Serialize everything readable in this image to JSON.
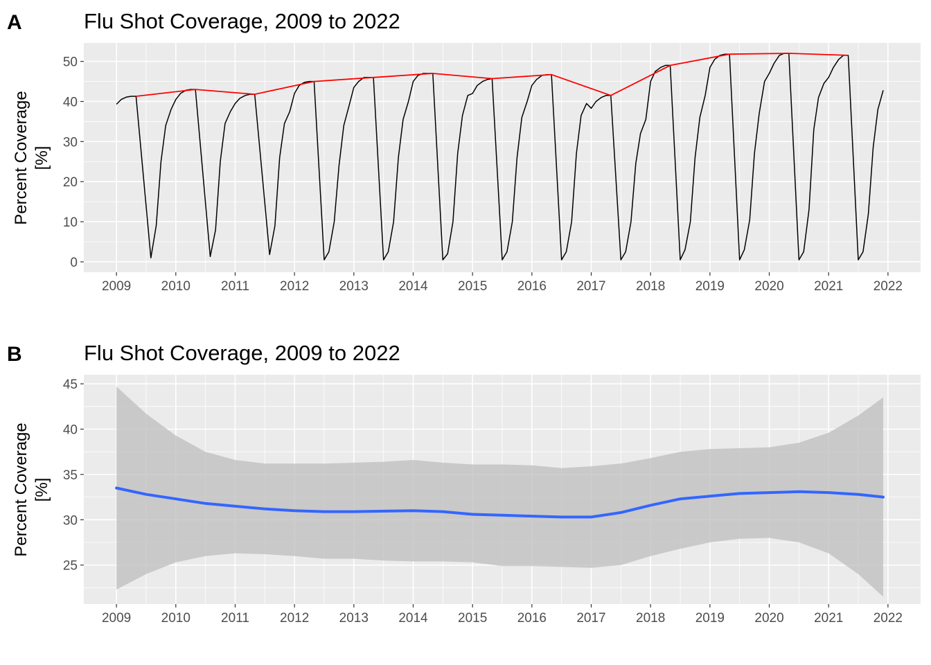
{
  "chart_data": [
    {
      "tag": "A",
      "type": "line",
      "title": "Flu Shot Coverage, 2009 to 2022",
      "ylabel_line1": "Percent Coverage",
      "ylabel_line2": "[%]",
      "xlim": [
        2008.45,
        2022.55
      ],
      "ylim": [
        -2.6,
        54.6
      ],
      "xticks": [
        2009,
        2010,
        2011,
        2012,
        2013,
        2014,
        2015,
        2016,
        2017,
        2018,
        2019,
        2020,
        2021,
        2022
      ],
      "yticks": [
        0,
        10,
        20,
        30,
        40,
        50
      ],
      "grid": true,
      "series": [
        {
          "color": "#000000",
          "x": [
            2009.0,
            2009.08,
            2009.17,
            2009.25,
            2009.33,
            2009.58,
            2009.67,
            2009.75,
            2009.83,
            2009.92,
            2010.0,
            2010.08,
            2010.17,
            2010.25,
            2010.33,
            2010.58,
            2010.67,
            2010.75,
            2010.83,
            2010.92,
            2011.0,
            2011.08,
            2011.17,
            2011.25,
            2011.33,
            2011.58,
            2011.67,
            2011.75,
            2011.83,
            2011.92,
            2012.0,
            2012.08,
            2012.17,
            2012.25,
            2012.33,
            2012.5,
            2012.58,
            2012.67,
            2012.75,
            2012.83,
            2012.92,
            2013.0,
            2013.08,
            2013.17,
            2013.25,
            2013.33,
            2013.5,
            2013.58,
            2013.67,
            2013.75,
            2013.83,
            2013.92,
            2014.0,
            2014.08,
            2014.17,
            2014.25,
            2014.33,
            2014.5,
            2014.58,
            2014.67,
            2014.75,
            2014.83,
            2014.92,
            2015.0,
            2015.08,
            2015.17,
            2015.25,
            2015.33,
            2015.5,
            2015.58,
            2015.67,
            2015.75,
            2015.83,
            2015.92,
            2016.0,
            2016.08,
            2016.17,
            2016.25,
            2016.33,
            2016.5,
            2016.58,
            2016.67,
            2016.75,
            2016.83,
            2016.92,
            2017.0,
            2017.08,
            2017.17,
            2017.25,
            2017.33,
            2017.5,
            2017.58,
            2017.67,
            2017.75,
            2017.83,
            2017.92,
            2018.0,
            2018.08,
            2018.17,
            2018.25,
            2018.33,
            2018.5,
            2018.58,
            2018.67,
            2018.75,
            2018.83,
            2018.92,
            2019.0,
            2019.08,
            2019.17,
            2019.25,
            2019.33,
            2019.5,
            2019.58,
            2019.67,
            2019.75,
            2019.83,
            2019.92,
            2020.0,
            2020.08,
            2020.17,
            2020.25,
            2020.33,
            2020.5,
            2020.58,
            2020.67,
            2020.75,
            2020.83,
            2020.92,
            2021.0,
            2021.08,
            2021.17,
            2021.25,
            2021.33,
            2021.5,
            2021.58,
            2021.67,
            2021.75,
            2021.83,
            2021.92
          ],
          "y": [
            39.3,
            40.5,
            41.1,
            41.3,
            41.3,
            1.0,
            9.0,
            25.0,
            34.0,
            38.0,
            40.5,
            42.0,
            42.8,
            43.0,
            43.0,
            1.3,
            8.0,
            25.0,
            34.5,
            37.5,
            39.5,
            40.8,
            41.5,
            41.8,
            41.8,
            1.8,
            9.0,
            26.0,
            34.5,
            37.5,
            42.0,
            44.0,
            44.8,
            45.0,
            45.0,
            0.5,
            2.5,
            10.0,
            24.0,
            34.0,
            39.0,
            43.5,
            45.0,
            46.0,
            46.0,
            46.0,
            0.5,
            2.5,
            10.0,
            26.0,
            35.5,
            40.0,
            45.0,
            46.5,
            47.0,
            47.0,
            47.0,
            0.5,
            2.0,
            10.0,
            27.0,
            36.5,
            41.5,
            42.0,
            44.0,
            45.0,
            45.5,
            45.7,
            0.5,
            2.5,
            10.0,
            26.0,
            36.0,
            40.0,
            44.0,
            45.5,
            46.5,
            46.7,
            46.7,
            0.5,
            2.5,
            10.0,
            27.0,
            36.5,
            39.5,
            38.3,
            40.0,
            41.0,
            41.5,
            41.5,
            0.5,
            2.5,
            10.0,
            24.5,
            32.0,
            35.5,
            45.0,
            47.5,
            48.5,
            49.0,
            49.0,
            0.5,
            3.0,
            10.0,
            26.0,
            36.0,
            41.5,
            48.5,
            50.5,
            51.5,
            51.8,
            51.8,
            0.5,
            3.0,
            10.5,
            27.0,
            37.0,
            45.0,
            47.0,
            49.5,
            51.5,
            52.0,
            52.0,
            0.5,
            2.5,
            13.0,
            33.0,
            41.0,
            44.5,
            46.0,
            48.5,
            50.5,
            51.5,
            51.5,
            0.5,
            2.5,
            12.0,
            28.5,
            38.0,
            42.8
          ]
        },
        {
          "color": "#ff0000",
          "x": [
            2009.33,
            2010.33,
            2011.33,
            2012.33,
            2013.33,
            2014.33,
            2015.33,
            2016.33,
            2017.33,
            2018.33,
            2019.33,
            2020.33,
            2021.33
          ],
          "y": [
            41.3,
            43.0,
            41.8,
            45.0,
            46.0,
            47.0,
            45.7,
            46.7,
            41.5,
            49.0,
            51.8,
            52.0,
            51.5
          ]
        }
      ]
    },
    {
      "tag": "B",
      "type": "area",
      "title": "Flu Shot Coverage, 2009 to 2022",
      "ylabel_line1": "Percent Coverage",
      "ylabel_line2": "[%]",
      "xlim": [
        2008.45,
        2022.55
      ],
      "ylim": [
        20.7,
        46.0
      ],
      "xticks": [
        2009,
        2010,
        2011,
        2012,
        2013,
        2014,
        2015,
        2016,
        2017,
        2018,
        2019,
        2020,
        2021,
        2022
      ],
      "yticks": [
        25,
        30,
        35,
        40,
        45
      ],
      "grid": true,
      "band_color": "#bdbdbd",
      "line_color": "#3366ff",
      "x": [
        2009.0,
        2009.5,
        2010.0,
        2010.5,
        2011.0,
        2011.5,
        2012.0,
        2012.5,
        2013.0,
        2013.5,
        2014.0,
        2014.5,
        2015.0,
        2015.5,
        2016.0,
        2016.5,
        2017.0,
        2017.5,
        2018.0,
        2018.5,
        2019.0,
        2019.5,
        2020.0,
        2020.5,
        2021.0,
        2021.5,
        2021.92
      ],
      "fit": [
        33.5,
        32.8,
        32.3,
        31.8,
        31.5,
        31.2,
        31.0,
        30.9,
        30.9,
        30.95,
        31.0,
        30.9,
        30.6,
        30.5,
        30.4,
        30.3,
        30.3,
        30.8,
        31.6,
        32.3,
        32.6,
        32.9,
        33.0,
        33.1,
        33.0,
        32.8,
        32.5
      ],
      "lower": [
        22.3,
        24.0,
        25.3,
        26.0,
        26.3,
        26.2,
        26.0,
        25.7,
        25.7,
        25.5,
        25.4,
        25.4,
        25.3,
        24.9,
        24.9,
        24.8,
        24.7,
        25.0,
        26.0,
        26.8,
        27.5,
        27.9,
        28.0,
        27.5,
        26.3,
        24.0,
        21.5
      ],
      "upper": [
        44.7,
        41.7,
        39.3,
        37.5,
        36.6,
        36.2,
        36.2,
        36.2,
        36.3,
        36.4,
        36.6,
        36.3,
        36.1,
        36.1,
        36.0,
        35.7,
        35.9,
        36.2,
        36.8,
        37.5,
        37.8,
        37.9,
        38.0,
        38.5,
        39.6,
        41.5,
        43.5
      ]
    }
  ]
}
